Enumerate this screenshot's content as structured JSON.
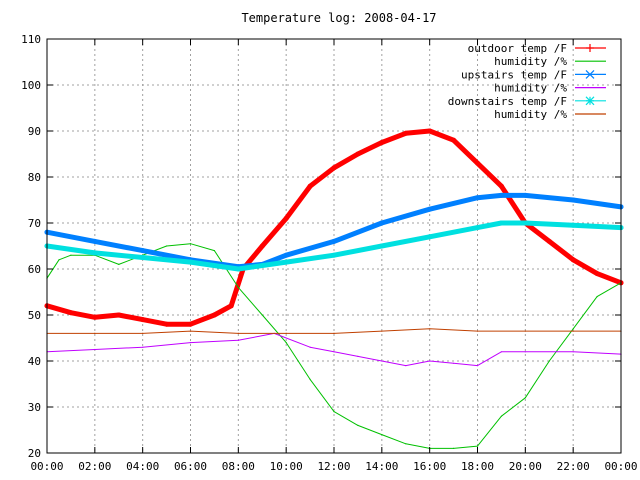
{
  "chart_data": {
    "type": "line",
    "title": "Temperature log: 2008-04-17",
    "xlabel": "",
    "ylabel": "",
    "x_ticks": [
      "00:00",
      "02:00",
      "04:00",
      "06:00",
      "08:00",
      "10:00",
      "12:00",
      "14:00",
      "16:00",
      "18:00",
      "20:00",
      "22:00",
      "00:00"
    ],
    "xlim": [
      0,
      24
    ],
    "ylim": [
      20,
      110
    ],
    "y_ticks": [
      20,
      30,
      40,
      50,
      60,
      70,
      80,
      90,
      100,
      110
    ],
    "grid": true,
    "legend_position": "top-right",
    "series": [
      {
        "name": "outdoor temp /F",
        "color": "#ff0000",
        "marker": "plus",
        "points": [
          [
            0,
            52
          ],
          [
            1,
            50.5
          ],
          [
            2,
            49.5
          ],
          [
            3,
            50
          ],
          [
            4,
            49
          ],
          [
            5,
            48
          ],
          [
            6,
            48
          ],
          [
            7,
            50
          ],
          [
            7.7,
            52
          ],
          [
            8.2,
            60
          ],
          [
            9,
            65
          ],
          [
            10,
            71
          ],
          [
            11,
            78
          ],
          [
            12,
            82
          ],
          [
            13,
            85
          ],
          [
            14,
            87.5
          ],
          [
            15,
            89.5
          ],
          [
            16,
            90
          ],
          [
            17,
            88
          ],
          [
            18,
            83
          ],
          [
            19,
            78
          ],
          [
            20,
            70
          ],
          [
            21,
            66
          ],
          [
            22,
            62
          ],
          [
            23,
            59
          ],
          [
            24,
            57
          ]
        ]
      },
      {
        "name": "humidity /%",
        "color": "#00c000",
        "marker": "none",
        "points": [
          [
            0,
            58
          ],
          [
            0.5,
            62
          ],
          [
            1,
            63
          ],
          [
            2,
            63
          ],
          [
            3,
            61
          ],
          [
            4,
            63
          ],
          [
            5,
            65
          ],
          [
            6,
            65.5
          ],
          [
            7,
            64
          ],
          [
            8,
            56
          ],
          [
            9,
            50
          ],
          [
            10,
            44
          ],
          [
            11,
            36
          ],
          [
            12,
            29
          ],
          [
            13,
            26
          ],
          [
            14,
            24
          ],
          [
            15,
            22
          ],
          [
            16,
            21
          ],
          [
            17,
            21
          ],
          [
            18,
            21.5
          ],
          [
            19,
            28
          ],
          [
            20,
            32
          ],
          [
            21,
            40
          ],
          [
            22,
            47
          ],
          [
            23,
            54
          ],
          [
            24,
            57
          ]
        ]
      },
      {
        "name": "upstairs temp /F",
        "color": "#0080ff",
        "marker": "x",
        "points": [
          [
            0,
            68
          ],
          [
            2,
            66
          ],
          [
            4,
            64
          ],
          [
            6,
            62
          ],
          [
            8,
            60.5
          ],
          [
            9,
            61
          ],
          [
            10,
            63
          ],
          [
            12,
            66
          ],
          [
            14,
            70
          ],
          [
            16,
            73
          ],
          [
            18,
            75.5
          ],
          [
            19,
            76
          ],
          [
            20,
            76
          ],
          [
            22,
            75
          ],
          [
            24,
            73.5
          ]
        ]
      },
      {
        "name": "humidity /%",
        "color": "#c000ff",
        "marker": "none",
        "points": [
          [
            0,
            42
          ],
          [
            2,
            42.5
          ],
          [
            4,
            43
          ],
          [
            6,
            44
          ],
          [
            8,
            44.5
          ],
          [
            9.5,
            46
          ],
          [
            11,
            43
          ],
          [
            12,
            42
          ],
          [
            13,
            41
          ],
          [
            14,
            40
          ],
          [
            15,
            39
          ],
          [
            16,
            40
          ],
          [
            17,
            39.5
          ],
          [
            18,
            39
          ],
          [
            19,
            42
          ],
          [
            20,
            42
          ],
          [
            22,
            42
          ],
          [
            24,
            41.5
          ]
        ]
      },
      {
        "name": "downstairs temp /F",
        "color": "#00e0e0",
        "marker": "star",
        "points": [
          [
            0,
            65
          ],
          [
            2,
            63.5
          ],
          [
            4,
            62.5
          ],
          [
            6,
            61.5
          ],
          [
            8,
            60
          ],
          [
            10,
            61.5
          ],
          [
            12,
            63
          ],
          [
            14,
            65
          ],
          [
            16,
            67
          ],
          [
            18,
            69
          ],
          [
            19,
            70
          ],
          [
            20,
            70
          ],
          [
            22,
            69.5
          ],
          [
            24,
            69
          ]
        ]
      },
      {
        "name": "humidity /%",
        "color": "#c04000",
        "marker": "none",
        "points": [
          [
            0,
            46
          ],
          [
            2,
            46
          ],
          [
            4,
            46
          ],
          [
            6,
            46.5
          ],
          [
            8,
            46
          ],
          [
            10,
            46
          ],
          [
            12,
            46
          ],
          [
            14,
            46.5
          ],
          [
            16,
            47
          ],
          [
            18,
            46.5
          ],
          [
            20,
            46.5
          ],
          [
            22,
            46.5
          ],
          [
            24,
            46.5
          ]
        ]
      }
    ]
  }
}
